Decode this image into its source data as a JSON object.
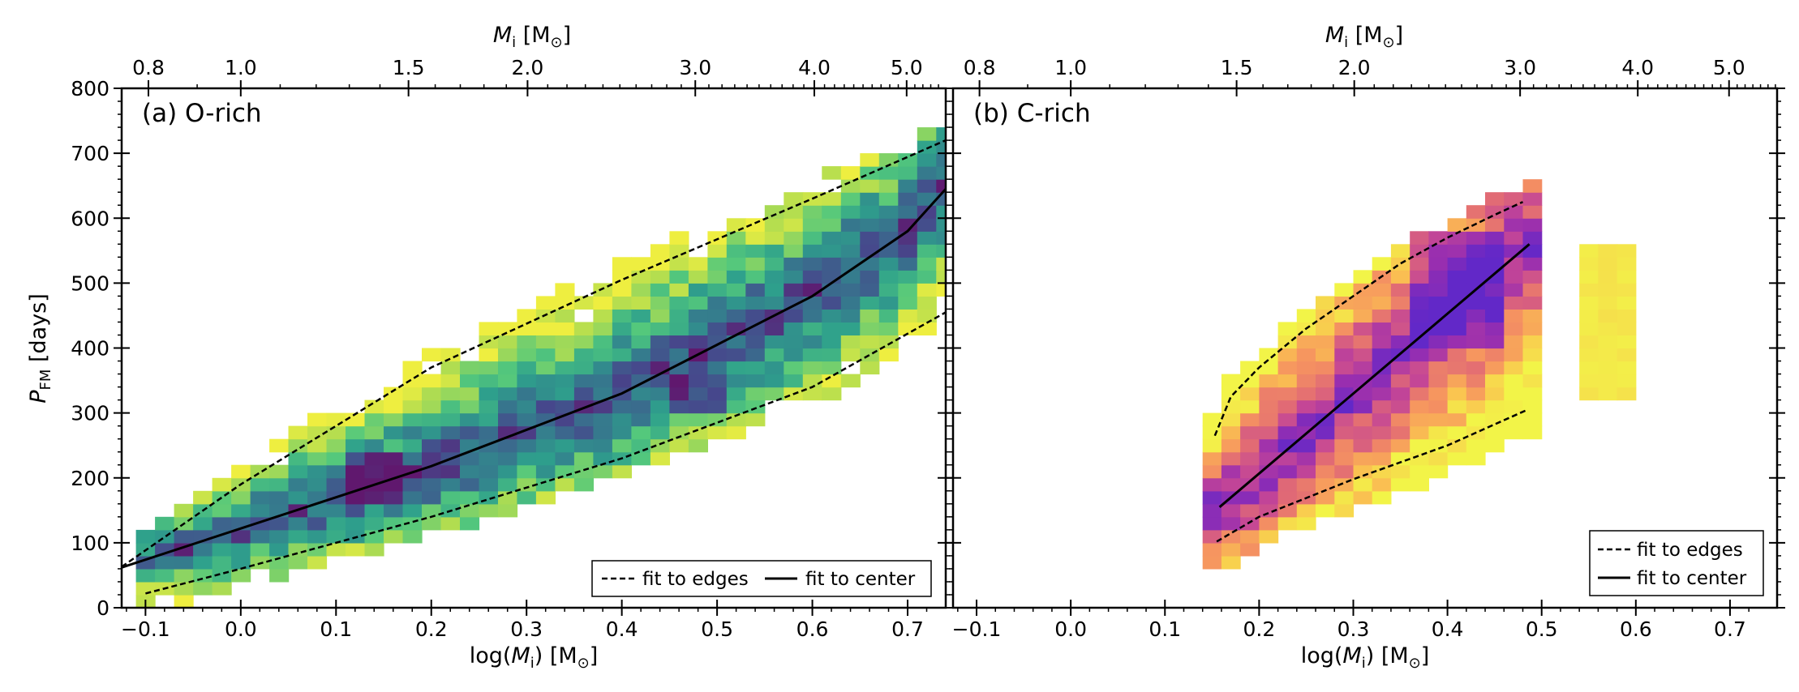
{
  "chart_data": [
    {
      "type": "heatmap",
      "panel_label": "(a) O-rich",
      "colormap": "viridis",
      "xlabel": "log(M_i) [M_sun]",
      "ylabel": "P_FM [days]",
      "top_xlabel": "M_i [M_sun]",
      "xlim": [
        -0.125,
        0.74
      ],
      "ylim": [
        0,
        800
      ],
      "x_ticks": [
        -0.1,
        0.0,
        0.1,
        0.2,
        0.3,
        0.4,
        0.5,
        0.6,
        0.7
      ],
      "x_tick_labels": [
        "−0.1",
        "0.0",
        "0.1",
        "0.2",
        "0.3",
        "0.4",
        "0.5",
        "0.6",
        "0.7"
      ],
      "y_ticks": [
        0,
        100,
        200,
        300,
        400,
        500,
        600,
        700,
        800
      ],
      "y_tick_labels": [
        "0",
        "100",
        "200",
        "300",
        "400",
        "500",
        "600",
        "700",
        "800"
      ],
      "top_ticks": [
        0.8,
        1.0,
        1.5,
        2.0,
        3.0,
        4.0,
        5.0
      ],
      "top_tick_labels": [
        "0.8",
        "1.0",
        "1.5",
        "2.0",
        "3.0",
        "4.0",
        "5.0"
      ],
      "fit_edges_upper": [
        [
          -0.125,
          63
        ],
        [
          0.0,
          190
        ],
        [
          0.2,
          370
        ],
        [
          0.4,
          505
        ],
        [
          0.6,
          630
        ],
        [
          0.74,
          720
        ]
      ],
      "fit_edges_lower": [
        [
          -0.1,
          22
        ],
        [
          0.0,
          60
        ],
        [
          0.2,
          140
        ],
        [
          0.4,
          230
        ],
        [
          0.6,
          340
        ],
        [
          0.74,
          455
        ]
      ],
      "fit_center": [
        [
          -0.125,
          62
        ],
        [
          0.0,
          122
        ],
        [
          0.2,
          218
        ],
        [
          0.4,
          330
        ],
        [
          0.5,
          405
        ],
        [
          0.6,
          480
        ],
        [
          0.7,
          580
        ],
        [
          0.74,
          645
        ]
      ],
      "legend": {
        "edges": "fit to edges",
        "center": "fit to center",
        "placement": "lower right",
        "layout": "horizontal"
      }
    },
    {
      "type": "heatmap",
      "panel_label": "(b) C-rich",
      "colormap": "plasma",
      "xlabel": "log(M_i) [M_sun]",
      "top_xlabel": "M_i [M_sun]",
      "xlim": [
        -0.125,
        0.75
      ],
      "ylim": [
        0,
        800
      ],
      "x_ticks": [
        -0.1,
        0.0,
        0.1,
        0.2,
        0.3,
        0.4,
        0.5,
        0.6,
        0.7
      ],
      "x_tick_labels": [
        "−0.1",
        "0.0",
        "0.1",
        "0.2",
        "0.3",
        "0.4",
        "0.5",
        "0.6",
        "0.7"
      ],
      "top_ticks": [
        0.8,
        1.0,
        1.5,
        2.0,
        3.0,
        4.0,
        5.0
      ],
      "top_tick_labels": [
        "0.8",
        "1.0",
        "1.5",
        "2.0",
        "3.0",
        "4.0",
        "5.0"
      ],
      "fit_edges_upper": [
        [
          0.153,
          265
        ],
        [
          0.17,
          325
        ],
        [
          0.2,
          370
        ],
        [
          0.25,
          430
        ],
        [
          0.3,
          480
        ],
        [
          0.35,
          530
        ],
        [
          0.4,
          570
        ],
        [
          0.45,
          605
        ],
        [
          0.48,
          625
        ]
      ],
      "fit_edges_lower": [
        [
          0.155,
          102
        ],
        [
          0.2,
          140
        ],
        [
          0.3,
          198
        ],
        [
          0.4,
          250
        ],
        [
          0.485,
          305
        ]
      ],
      "fit_center": [
        [
          0.158,
          155
        ],
        [
          0.487,
          560
        ]
      ],
      "legend": {
        "edges": "fit to edges",
        "center": "fit to center",
        "placement": "lower right",
        "layout": "vertical"
      }
    }
  ]
}
